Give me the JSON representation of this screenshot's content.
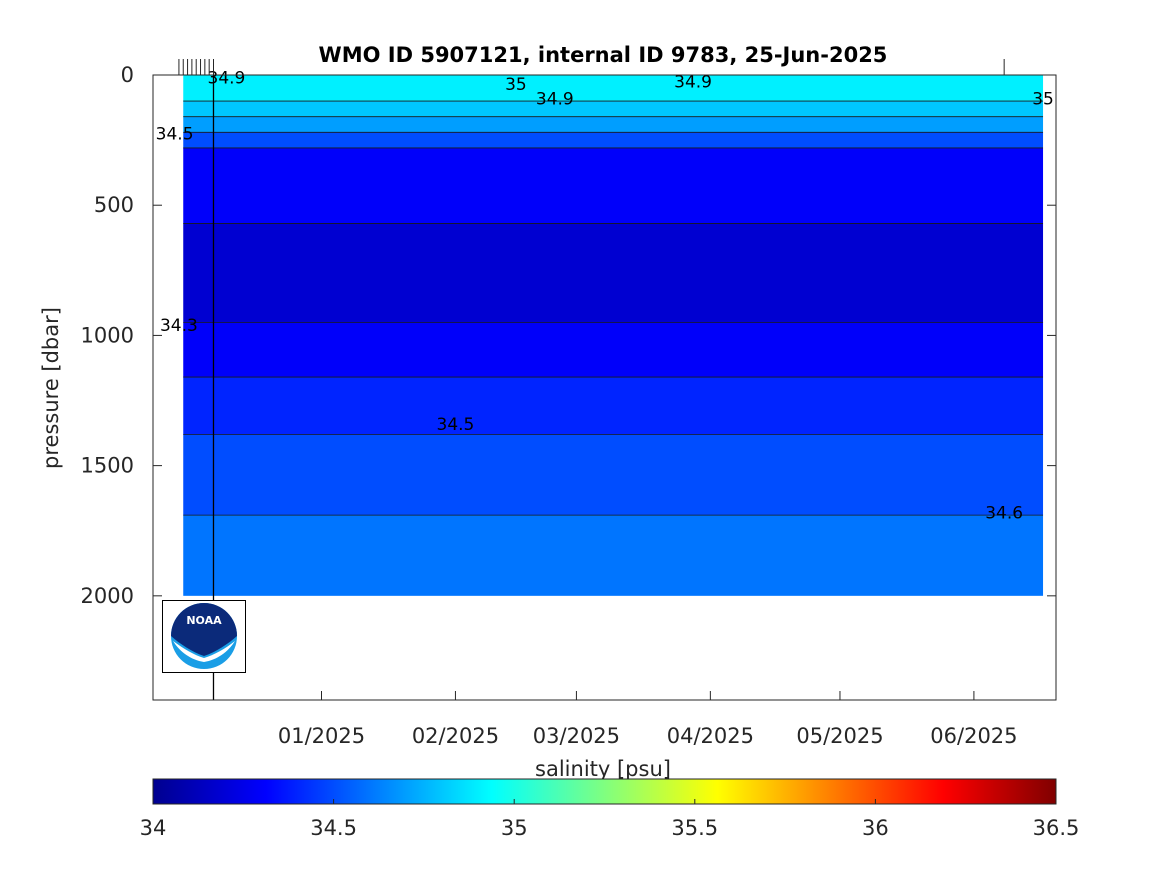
{
  "chart_data": {
    "type": "contour",
    "title": "WMO ID 5907121, internal ID 9783, 25-Jun-2025",
    "xlabel": "",
    "ylabel": "pressure [dbar]",
    "colorbar_label": "salinity [psu]",
    "x_tick_labels": [
      "01/2025",
      "02/2025",
      "03/2025",
      "04/2025",
      "05/2025",
      "06/2025"
    ],
    "x_tick_dates": [
      "2025-01-01",
      "2025-02-01",
      "2025-03-01",
      "2025-04-01",
      "2025-05-01",
      "2025-06-01"
    ],
    "xlim": [
      "2024-11-23",
      "2025-06-20"
    ],
    "y_ticks": [
      0,
      500,
      1000,
      1500,
      2000
    ],
    "ylim": [
      0,
      2400
    ],
    "y_reversed": true,
    "colorbar_ticks": [
      34,
      34.5,
      35,
      35.5,
      36,
      36.5
    ],
    "colorbar_range": [
      34,
      36.5
    ],
    "colormap": "jet",
    "grid": false,
    "profile_marker_date": "2024-12-07",
    "profile_dates": [
      "2024-11-29",
      "2024-11-30",
      "2024-12-01",
      "2024-12-02",
      "2024-12-03",
      "2024-12-04",
      "2024-12-05",
      "2024-12-06",
      "2024-12-07",
      "2025-06-08"
    ],
    "salinity_bands": [
      {
        "salinity": 34.9,
        "top": 0,
        "bottom": 100
      },
      {
        "salinity": 34.8,
        "top": 100,
        "bottom": 160
      },
      {
        "salinity": 34.7,
        "top": 160,
        "bottom": 220
      },
      {
        "salinity": 34.5,
        "top": 220,
        "bottom": 280
      },
      {
        "salinity": 34.3,
        "top": 280,
        "bottom": 570
      },
      {
        "salinity": 34.2,
        "top": 570,
        "bottom": 950
      },
      {
        "salinity": 34.3,
        "top": 950,
        "bottom": 1160
      },
      {
        "salinity": 34.4,
        "top": 1160,
        "bottom": 1380
      },
      {
        "salinity": 34.5,
        "top": 1380,
        "bottom": 1690
      },
      {
        "salinity": 34.6,
        "top": 1690,
        "bottom": 2000
      }
    ],
    "contour_labels": [
      {
        "text": "34.9",
        "date": "2024-12-10",
        "pressure": 10
      },
      {
        "text": "35",
        "date": "2025-02-15",
        "pressure": 35
      },
      {
        "text": "34.9",
        "date": "2025-02-24",
        "pressure": 90
      },
      {
        "text": "34.9",
        "date": "2025-03-28",
        "pressure": 25
      },
      {
        "text": "35",
        "date": "2025-06-17",
        "pressure": 90
      },
      {
        "text": "34.5",
        "date": "2024-11-28",
        "pressure": 225
      },
      {
        "text": "34.3",
        "date": "2024-11-29",
        "pressure": 960
      },
      {
        "text": "34.5",
        "date": "2025-02-01",
        "pressure": 1340
      },
      {
        "text": "34.6",
        "date": "2025-06-08",
        "pressure": 1680
      }
    ],
    "logo": "noaa-logo"
  }
}
